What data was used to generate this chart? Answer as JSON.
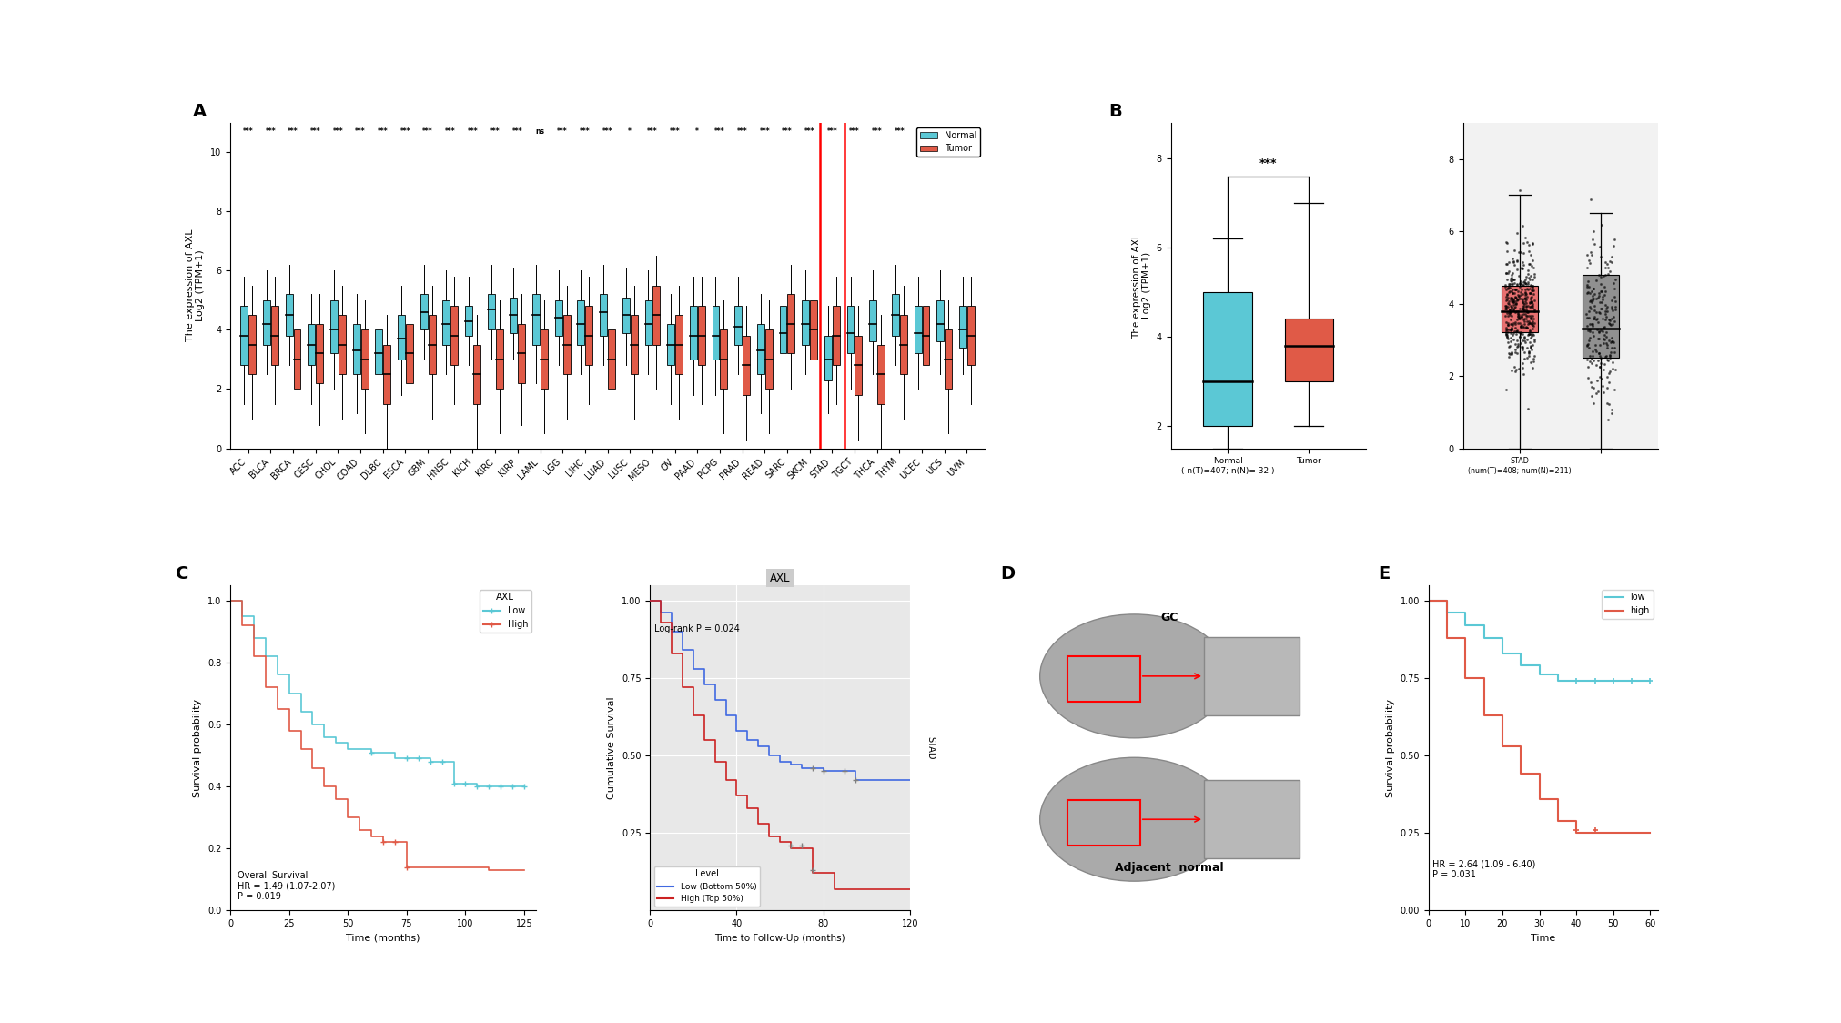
{
  "panel_A": {
    "cancer_types": [
      "ACC",
      "BLCA",
      "BRCA",
      "CESC",
      "CHOL",
      "COAD",
      "DLBC",
      "ESCA",
      "GBM",
      "HNSC",
      "KICH",
      "KIRC",
      "KIRP",
      "LAML",
      "LGG",
      "LIHC",
      "LUAD",
      "LUSC",
      "MESO",
      "OV",
      "PAAD",
      "PCPG",
      "PRAD",
      "READ",
      "SARC",
      "SKCM",
      "STAD",
      "TGCT",
      "THCA",
      "THYM",
      "UCEC",
      "UCS",
      "UVM"
    ],
    "significance": [
      "***",
      "***",
      "***",
      "***",
      "***",
      "***",
      "***",
      "***",
      "***",
      "***",
      "***",
      "***",
      "***",
      "ns",
      "***",
      "***",
      "***",
      "*",
      "***",
      "***",
      "*",
      "***",
      "***",
      "***",
      "***",
      "***",
      "***",
      "***",
      "***",
      "***",
      "***",
      "***",
      "***"
    ],
    "normal_medians": [
      3.8,
      4.2,
      4.5,
      3.5,
      4.0,
      3.3,
      3.2,
      3.7,
      4.6,
      4.2,
      4.3,
      4.7,
      4.5,
      4.5,
      4.4,
      4.2,
      4.6,
      4.5,
      4.2,
      3.5,
      3.8,
      3.8,
      4.1,
      3.3,
      3.9,
      4.2,
      3.0,
      3.9,
      4.2,
      4.5,
      3.9,
      4.2,
      4.0
    ],
    "normal_q1": [
      2.8,
      3.5,
      3.8,
      2.8,
      3.2,
      2.5,
      2.5,
      3.0,
      4.0,
      3.5,
      3.8,
      4.0,
      3.9,
      3.5,
      3.8,
      3.5,
      3.8,
      3.9,
      3.5,
      2.8,
      3.0,
      3.0,
      3.5,
      2.5,
      3.2,
      3.5,
      2.3,
      3.2,
      3.6,
      3.8,
      3.2,
      3.6,
      3.4
    ],
    "normal_q3": [
      4.8,
      5.0,
      5.2,
      4.2,
      5.0,
      4.2,
      4.0,
      4.5,
      5.2,
      5.0,
      4.8,
      5.2,
      5.1,
      5.2,
      5.0,
      5.0,
      5.2,
      5.1,
      5.0,
      4.2,
      4.8,
      4.8,
      4.8,
      4.2,
      4.8,
      5.0,
      3.8,
      4.8,
      5.0,
      5.2,
      4.8,
      5.0,
      4.8
    ],
    "normal_whisker_lo": [
      1.5,
      2.5,
      2.8,
      1.5,
      2.0,
      1.2,
      1.5,
      1.8,
      3.0,
      2.5,
      2.8,
      3.0,
      3.0,
      2.2,
      2.8,
      2.5,
      2.8,
      2.8,
      2.5,
      1.5,
      1.8,
      1.8,
      2.5,
      1.2,
      2.0,
      2.5,
      1.2,
      2.0,
      2.5,
      2.8,
      2.0,
      2.5,
      2.5
    ],
    "normal_whisker_hi": [
      5.8,
      6.0,
      6.2,
      5.2,
      6.0,
      5.2,
      5.0,
      5.5,
      6.2,
      6.0,
      5.8,
      6.2,
      6.1,
      6.2,
      6.0,
      6.0,
      6.2,
      6.1,
      6.0,
      5.2,
      5.8,
      5.8,
      5.8,
      5.2,
      5.8,
      6.0,
      4.8,
      5.8,
      6.0,
      6.2,
      5.8,
      6.0,
      5.8
    ],
    "tumor_medians": [
      3.5,
      3.8,
      3.0,
      3.2,
      3.5,
      3.0,
      2.5,
      3.2,
      3.5,
      3.8,
      2.5,
      3.0,
      3.2,
      3.0,
      3.5,
      3.8,
      3.0,
      3.5,
      4.5,
      3.5,
      3.8,
      3.0,
      2.8,
      3.0,
      4.2,
      4.0,
      3.8,
      2.8,
      2.5,
      3.5,
      3.8,
      3.0,
      3.8
    ],
    "tumor_q1": [
      2.5,
      2.8,
      2.0,
      2.2,
      2.5,
      2.0,
      1.5,
      2.2,
      2.5,
      2.8,
      1.5,
      2.0,
      2.2,
      2.0,
      2.5,
      2.8,
      2.0,
      2.5,
      3.5,
      2.5,
      2.8,
      2.0,
      1.8,
      2.0,
      3.2,
      3.0,
      2.8,
      1.8,
      1.5,
      2.5,
      2.8,
      2.0,
      2.8
    ],
    "tumor_q3": [
      4.5,
      4.8,
      4.0,
      4.2,
      4.5,
      4.0,
      3.5,
      4.2,
      4.5,
      4.8,
      3.5,
      4.0,
      4.2,
      4.0,
      4.5,
      4.8,
      4.0,
      4.5,
      5.5,
      4.5,
      4.8,
      4.0,
      3.8,
      4.0,
      5.2,
      5.0,
      4.8,
      3.8,
      3.5,
      4.5,
      4.8,
      4.0,
      4.8
    ],
    "tumor_whisker_lo": [
      1.0,
      1.5,
      0.5,
      0.8,
      1.0,
      0.5,
      0.0,
      0.8,
      1.0,
      1.5,
      0.0,
      0.5,
      0.8,
      0.5,
      1.0,
      1.5,
      0.5,
      1.0,
      2.0,
      1.0,
      1.5,
      0.5,
      0.3,
      0.5,
      2.0,
      1.8,
      1.5,
      0.3,
      0.0,
      1.0,
      1.5,
      0.5,
      1.5
    ],
    "tumor_whisker_hi": [
      5.5,
      5.8,
      5.0,
      5.2,
      5.5,
      5.0,
      4.5,
      5.2,
      5.5,
      5.8,
      4.5,
      5.0,
      5.2,
      5.0,
      5.5,
      5.8,
      5.0,
      5.5,
      6.5,
      5.5,
      5.8,
      5.0,
      4.8,
      5.0,
      6.2,
      6.0,
      5.8,
      4.8,
      4.5,
      5.5,
      5.8,
      5.0,
      5.8
    ],
    "normal_color": "#5BC8D5",
    "tumor_color": "#E05A47",
    "stad_highlight_index": 26,
    "ylabel": "The expression of AXL\nLog2 (TPM+1)",
    "ylim": [
      0,
      11
    ],
    "yticks": [
      0,
      2,
      4,
      6,
      8,
      10
    ]
  },
  "panel_B_left": {
    "normal_data": {
      "median": 3.0,
      "q1": 2.0,
      "q3": 5.0,
      "whisker_lo": 1.5,
      "whisker_hi": 6.2
    },
    "tumor_data": {
      "median": 3.8,
      "q1": 3.0,
      "q3": 4.4,
      "whisker_lo": 2.0,
      "whisker_hi": 7.0
    },
    "normal_color": "#5BC8D5",
    "tumor_color": "#E05A47",
    "significance": "***",
    "ylabel": "The expression of AXL\nLog2 (TPM+1)",
    "ylim": [
      1.5,
      8.8
    ],
    "yticks": [
      2,
      4,
      6,
      8
    ]
  },
  "panel_B_right": {
    "tumor_data": {
      "median": 3.8,
      "q1": 3.2,
      "q3": 4.5,
      "whisker_lo": 0.0,
      "whisker_hi": 7.0
    },
    "normal_data": {
      "median": 3.3,
      "q1": 2.5,
      "q3": 4.8,
      "whisker_lo": 0.0,
      "whisker_hi": 6.5
    },
    "tumor_color": "#E87070",
    "normal_color": "#909090",
    "ylim": [
      0,
      9
    ],
    "yticks": [
      0,
      2,
      4,
      6,
      8
    ]
  },
  "panel_C_left": {
    "low_x": [
      0,
      5,
      10,
      15,
      20,
      25,
      30,
      35,
      40,
      45,
      50,
      55,
      60,
      65,
      70,
      75,
      80,
      85,
      90,
      95,
      100,
      105,
      110,
      115,
      120,
      125
    ],
    "low_y": [
      1.0,
      0.95,
      0.88,
      0.82,
      0.76,
      0.7,
      0.64,
      0.6,
      0.56,
      0.54,
      0.52,
      0.52,
      0.51,
      0.51,
      0.49,
      0.49,
      0.49,
      0.48,
      0.48,
      0.41,
      0.41,
      0.4,
      0.4,
      0.4,
      0.4,
      0.4
    ],
    "high_x": [
      0,
      5,
      10,
      15,
      20,
      25,
      30,
      35,
      40,
      45,
      50,
      55,
      60,
      65,
      70,
      75,
      80,
      85,
      90,
      95,
      100,
      105,
      110,
      115,
      120,
      125
    ],
    "high_y": [
      1.0,
      0.92,
      0.82,
      0.72,
      0.65,
      0.58,
      0.52,
      0.46,
      0.4,
      0.36,
      0.3,
      0.26,
      0.24,
      0.22,
      0.22,
      0.14,
      0.14,
      0.14,
      0.14,
      0.14,
      0.14,
      0.14,
      0.13,
      0.13,
      0.13,
      0.13
    ],
    "low_color": "#5BC8D5",
    "high_color": "#E05A47",
    "xlabel": "Time (months)",
    "ylabel": "Survival probability",
    "text": "Overall Survival\nHR = 1.49 (1.07-2.07)\nP = 0.019",
    "legend_title": "AXL",
    "xlim": [
      0,
      130
    ],
    "ylim": [
      0,
      1.05
    ],
    "yticks": [
      0.0,
      0.2,
      0.4,
      0.6,
      0.8,
      1.0
    ],
    "xticks": [
      0,
      25,
      50,
      75,
      100,
      125
    ]
  },
  "panel_C_right": {
    "low_x": [
      0,
      5,
      10,
      15,
      20,
      25,
      30,
      35,
      40,
      45,
      50,
      55,
      60,
      65,
      70,
      75,
      80,
      85,
      90,
      95,
      100,
      105,
      110,
      115,
      120
    ],
    "low_y": [
      1.0,
      0.96,
      0.9,
      0.84,
      0.78,
      0.73,
      0.68,
      0.63,
      0.58,
      0.55,
      0.53,
      0.5,
      0.48,
      0.47,
      0.46,
      0.46,
      0.45,
      0.45,
      0.45,
      0.42,
      0.42,
      0.42,
      0.42,
      0.42,
      0.42
    ],
    "high_x": [
      0,
      5,
      10,
      15,
      20,
      25,
      30,
      35,
      40,
      45,
      50,
      55,
      60,
      65,
      70,
      75,
      80,
      85,
      90,
      95,
      100,
      105,
      110,
      115,
      120
    ],
    "high_y": [
      1.0,
      0.93,
      0.83,
      0.72,
      0.63,
      0.55,
      0.48,
      0.42,
      0.37,
      0.33,
      0.28,
      0.24,
      0.22,
      0.2,
      0.2,
      0.12,
      0.12,
      0.07,
      0.07,
      0.07,
      0.07,
      0.07,
      0.07,
      0.07,
      0.07
    ],
    "low_color": "#4169E1",
    "high_color": "#CC2222",
    "xlabel": "Time to Follow-Up (months)",
    "ylabel": "Cumulative Survival",
    "title": "AXL",
    "text": "Log-rank P = 0.024",
    "legend_label_low": "Low (Bottom 50%)",
    "legend_label_high": "High (Top 50%)",
    "xlim": [
      0,
      120
    ],
    "ylim": [
      0,
      1.05
    ],
    "yticks": [
      0.25,
      0.5,
      0.75,
      1.0
    ],
    "xticks": [
      0,
      40,
      80,
      120
    ]
  },
  "panel_E": {
    "low_x": [
      0,
      5,
      10,
      15,
      20,
      25,
      30,
      35,
      40,
      45,
      50,
      55,
      60
    ],
    "low_y": [
      1.0,
      0.96,
      0.92,
      0.88,
      0.83,
      0.79,
      0.76,
      0.74,
      0.74,
      0.74,
      0.74,
      0.74,
      0.74
    ],
    "high_x": [
      0,
      5,
      10,
      15,
      20,
      25,
      30,
      35,
      40,
      45,
      50,
      55,
      60
    ],
    "high_y": [
      1.0,
      0.88,
      0.75,
      0.63,
      0.53,
      0.44,
      0.36,
      0.29,
      0.25,
      0.25,
      0.25,
      0.25,
      0.25
    ],
    "low_color": "#5BC8D5",
    "high_color": "#E05A47",
    "xlabel": "Time",
    "ylabel": "Survival probability",
    "text": "HR = 2.64 (1.09 - 6.40)\nP = 0.031",
    "legend_low": "low",
    "legend_high": "high",
    "xlim": [
      0,
      62
    ],
    "ylim": [
      0,
      1.05
    ],
    "yticks": [
      0.0,
      0.25,
      0.5,
      0.75,
      1.0
    ],
    "xticks": [
      0,
      10,
      20,
      30,
      40,
      50,
      60
    ]
  },
  "background_color": "#ffffff"
}
